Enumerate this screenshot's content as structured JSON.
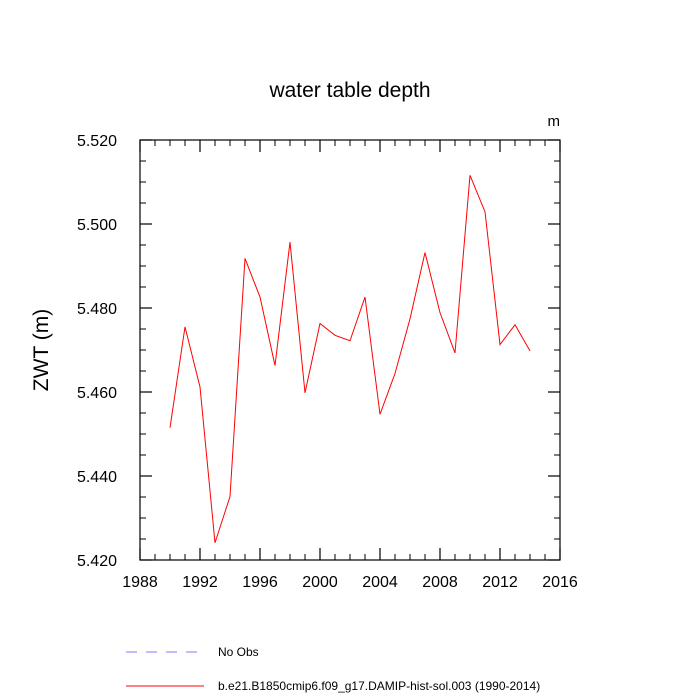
{
  "chart_data": {
    "type": "line",
    "title": "water table depth",
    "units_label": "m",
    "ylabel": "ZWT  (m)",
    "xlabel": "",
    "xlim": [
      1988,
      2016
    ],
    "ylim": [
      5.42,
      5.52
    ],
    "x_ticks": [
      1988,
      1992,
      1996,
      2000,
      2004,
      2008,
      2012,
      2016
    ],
    "x_tick_labels": [
      "1988",
      "1992",
      "1996",
      "2000",
      "2004",
      "2008",
      "2012",
      "2016"
    ],
    "y_ticks": [
      5.42,
      5.44,
      5.46,
      5.48,
      5.5,
      5.52
    ],
    "y_tick_labels": [
      "5.420",
      "5.440",
      "5.460",
      "5.480",
      "5.500",
      "5.520"
    ],
    "grid": false,
    "legend_position": "bottom-left",
    "series": [
      {
        "name": "b.e21.B1850cmip6.f09_g17.DAMIP-hist-sol.003 (1990-2014)",
        "color": "#ff0000",
        "style": "solid",
        "x": [
          1990,
          1991,
          1992,
          1993,
          1994,
          1995,
          1996,
          1997,
          1998,
          1999,
          2000,
          2001,
          2002,
          2003,
          2004,
          2005,
          2006,
          2007,
          2008,
          2009,
          2010,
          2011,
          2012,
          2013,
          2014
        ],
        "values": [
          5.4515,
          5.4755,
          5.4612,
          5.4241,
          5.4351,
          5.4918,
          5.4826,
          5.4663,
          5.4957,
          5.4598,
          5.4763,
          5.4735,
          5.4722,
          5.4826,
          5.4547,
          5.4644,
          5.4774,
          5.4932,
          5.4789,
          5.4693,
          5.5116,
          5.5029,
          5.4713,
          5.476,
          5.4698
        ]
      }
    ],
    "legend_entries": [
      {
        "label": "No Obs",
        "color": "#7b7bff",
        "style": "dashed"
      },
      {
        "label": "b.e21.B1850cmip6.f09_g17.DAMIP-hist-sol.003 (1990-2014)",
        "color": "#ff0000",
        "style": "solid"
      }
    ]
  }
}
